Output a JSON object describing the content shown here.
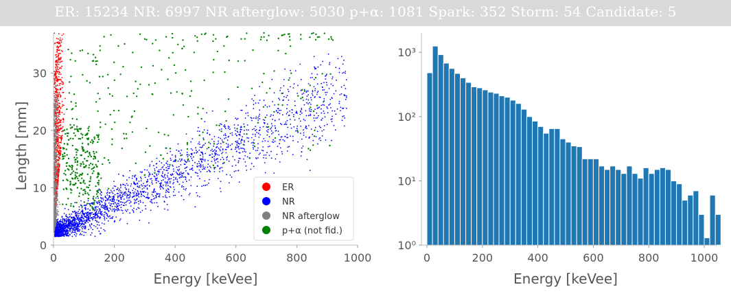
{
  "header": {
    "text": "ER: 15234  NR: 6997  NR afterglow: 5030  p+α: 1081  Spark: 352  Storm: 54  Candidate: 5"
  },
  "chart_data": [
    {
      "type": "scatter",
      "title": "",
      "xlabel": "Energy [keVee]",
      "ylabel": "Length [mm]",
      "xlim": [
        0,
        1000
      ],
      "ylim": [
        0,
        37
      ],
      "xticks": [
        "0",
        "200",
        "400",
        "600",
        "800",
        "1000"
      ],
      "yticks": [
        "0",
        "10",
        "20",
        "30"
      ],
      "grid": false,
      "legend_position": "lower-right",
      "series": [
        {
          "name": "NR",
          "color": "#0000ff",
          "count": 6997,
          "x_range": [
            5,
            960
          ],
          "trend": "length ≈ 2 + 0.026·E"
        },
        {
          "name": "p+α (not fid.)",
          "color": "#008000",
          "count": 1081,
          "x_range": [
            20,
            960
          ],
          "y_range": [
            5,
            37
          ]
        },
        {
          "name": "ER",
          "color": "#ff0000",
          "count": 15234,
          "x_range": [
            0,
            40
          ],
          "y_range": [
            2,
            37
          ]
        },
        {
          "name": "NR afterglow",
          "color": "#808080",
          "count": 5030,
          "x_range": [
            0,
            25
          ],
          "y_range": [
            2,
            30
          ]
        }
      ],
      "legend": [
        "ER",
        "NR",
        "NR afterglow",
        "p+α (not fid.)"
      ]
    },
    {
      "type": "bar",
      "title": "",
      "xlabel": "Energy [keVee]",
      "ylabel": "",
      "xlim": [
        0,
        1000
      ],
      "ylog": true,
      "ylim": [
        1,
        2000
      ],
      "xticks": [
        "0",
        "200",
        "400",
        "600",
        "800",
        "1000"
      ],
      "yticks": [
        "10⁰",
        "10¹",
        "10²",
        "10³"
      ],
      "bar_color": "#1f77b4",
      "bin_width": 20,
      "bin_edges_start": 0,
      "values": [
        480,
        1250,
        920,
        680,
        560,
        470,
        400,
        340,
        290,
        280,
        260,
        240,
        230,
        210,
        200,
        180,
        160,
        130,
        100,
        85,
        70,
        55,
        65,
        65,
        45,
        40,
        35,
        34,
        22,
        22,
        22,
        17,
        15,
        17,
        15,
        13,
        17,
        13,
        11,
        16,
        13,
        15,
        16,
        15,
        10,
        9,
        5,
        6,
        7,
        3,
        1.3,
        6,
        3
      ]
    }
  ]
}
